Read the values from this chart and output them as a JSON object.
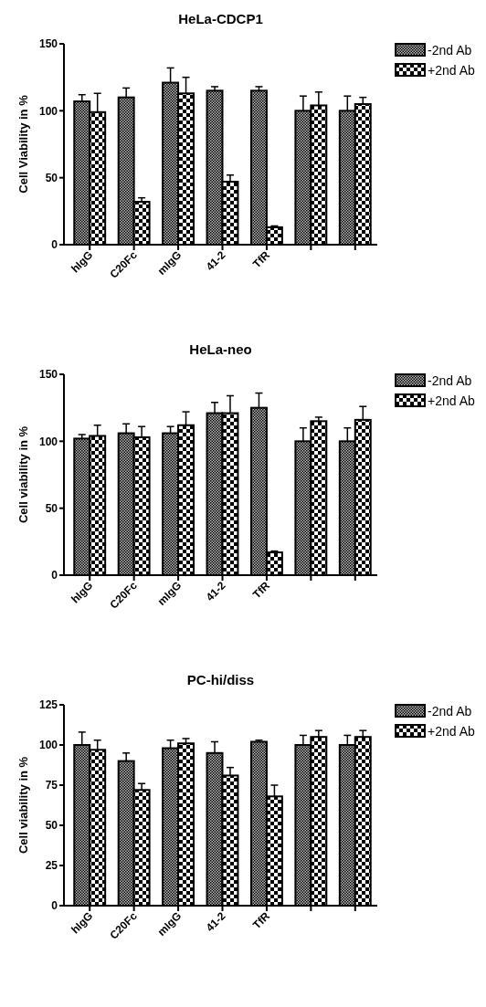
{
  "chart_data": [
    {
      "type": "bar",
      "title": "HeLa-CDCP1",
      "ylabel": "Cell Viability in %",
      "categories": [
        "hIgG",
        "C20Fc",
        "mIgG",
        "41-2",
        "TfR",
        null,
        null
      ],
      "ylim": [
        0,
        150
      ],
      "yticks": [
        0,
        50,
        100,
        150
      ],
      "legend": "right",
      "series": [
        {
          "name": "-2nd Ab",
          "color": "#000000",
          "values": [
            107,
            110,
            121,
            115,
            115,
            100,
            100
          ],
          "errors": [
            [
              107,
              112
            ],
            [
              110,
              117
            ],
            [
              121,
              132
            ],
            [
              115,
              118
            ],
            [
              115,
              118
            ],
            [
              100,
              111
            ],
            [
              100,
              111
            ]
          ]
        },
        {
          "name": "+2nd Ab",
          "color": "#000000",
          "values": [
            99,
            32,
            113,
            47,
            13,
            104,
            105
          ],
          "errors": [
            [
              99,
              113
            ],
            [
              32,
              35
            ],
            [
              113,
              125
            ],
            [
              47,
              52
            ],
            [
              13,
              14
            ],
            [
              104,
              114
            ],
            [
              105,
              110
            ]
          ]
        }
      ]
    },
    {
      "type": "bar",
      "title": "HeLa-neo",
      "ylabel": "Cell viability in %",
      "categories": [
        "hIgG",
        "C20Fc",
        "mIgG",
        "41-2",
        "TfR",
        null,
        null
      ],
      "ylim": [
        0,
        150
      ],
      "yticks": [
        0,
        50,
        100,
        150
      ],
      "legend": "right",
      "series": [
        {
          "name": "-2nd Ab",
          "color": "#000000",
          "values": [
            102,
            106,
            106,
            121,
            125,
            100,
            100
          ],
          "errors": [
            [
              102,
              105
            ],
            [
              106,
              113
            ],
            [
              106,
              111
            ],
            [
              121,
              129
            ],
            [
              125,
              136
            ],
            [
              100,
              110
            ],
            [
              100,
              110
            ]
          ]
        },
        {
          "name": "+2nd Ab",
          "color": "#000000",
          "values": [
            104,
            103,
            112,
            121,
            17,
            115,
            116
          ],
          "errors": [
            [
              104,
              112
            ],
            [
              103,
              111
            ],
            [
              112,
              122
            ],
            [
              121,
              134
            ],
            [
              17,
              18
            ],
            [
              115,
              118
            ],
            [
              116,
              126
            ]
          ]
        }
      ]
    },
    {
      "type": "bar",
      "title": "PC-hi/diss",
      "ylabel": "Cell viability in %",
      "categories": [
        "hIgG",
        "C20Fc",
        "mIgG",
        "41-2",
        "TfR",
        null,
        null
      ],
      "ylim": [
        0,
        125
      ],
      "yticks": [
        0,
        25,
        50,
        75,
        100,
        125
      ],
      "legend": "right",
      "series": [
        {
          "name": "-2nd Ab",
          "color": "#000000",
          "values": [
            100,
            90,
            98,
            95,
            102,
            100,
            100
          ],
          "errors": [
            [
              100,
              108
            ],
            [
              90,
              95
            ],
            [
              98,
              103
            ],
            [
              95,
              102
            ],
            [
              102,
              103
            ],
            [
              100,
              106
            ],
            [
              100,
              106
            ]
          ]
        },
        {
          "name": "+2nd Ab",
          "color": "#000000",
          "values": [
            97,
            72,
            101,
            81,
            68,
            105,
            105
          ],
          "errors": [
            [
              97,
              103
            ],
            [
              72,
              76
            ],
            [
              101,
              104
            ],
            [
              81,
              86
            ],
            [
              68,
              75
            ],
            [
              105,
              109
            ],
            [
              105,
              109
            ]
          ]
        }
      ]
    }
  ]
}
